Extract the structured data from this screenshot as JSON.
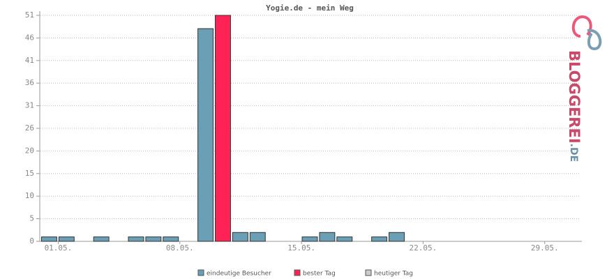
{
  "chart_data": {
    "type": "bar",
    "title": "Yogie.de - mein Weg",
    "categories": [
      "01.05.",
      null,
      null,
      null,
      null,
      null,
      null,
      "08.05.",
      null,
      null,
      null,
      null,
      null,
      null,
      "15.05.",
      null,
      null,
      null,
      null,
      null,
      null,
      "22.05.",
      null,
      null,
      null,
      null,
      null,
      null,
      "29.05.",
      null,
      null
    ],
    "series": [
      {
        "name": "eindeutige Besucher",
        "color": "#6a9fb5",
        "values": [
          1,
          1,
          0,
          1,
          0,
          1,
          1,
          1,
          0,
          48,
          null,
          2,
          2,
          0,
          0,
          1,
          2,
          1,
          0,
          1,
          2,
          0,
          0,
          0,
          0,
          0,
          0,
          0,
          0,
          0,
          0
        ]
      },
      {
        "name": "bester Tag",
        "color": "#ff2255",
        "values": [
          null,
          null,
          null,
          null,
          null,
          null,
          null,
          null,
          null,
          null,
          51,
          null,
          null,
          null,
          null,
          null,
          null,
          null,
          null,
          null,
          null,
          null,
          null,
          null,
          null,
          null,
          null,
          null,
          null,
          null,
          null
        ]
      },
      {
        "name": "heutiger Tag",
        "color": "#cccccc",
        "values": [
          null,
          null,
          null,
          null,
          null,
          null,
          null,
          null,
          null,
          null,
          null,
          null,
          null,
          null,
          null,
          null,
          null,
          null,
          null,
          null,
          null,
          null,
          null,
          null,
          null,
          null,
          null,
          null,
          null,
          null,
          null
        ]
      }
    ],
    "ylim": [
      0,
      51
    ],
    "yticks": [
      0,
      {
        "value": 5.1,
        "label": "5"
      },
      {
        "value": 10.2,
        "label": "10"
      },
      {
        "value": 15.3,
        "label": "15"
      },
      {
        "value": 20.4,
        "label": "20"
      },
      {
        "value": 25.5,
        "label": "26"
      },
      {
        "value": 30.6,
        "label": "31"
      },
      {
        "value": 35.7,
        "label": "36"
      },
      {
        "value": 40.8,
        "label": "41"
      },
      {
        "value": 45.9,
        "label": "46"
      },
      51
    ],
    "grid": true
  },
  "logo": {
    "name": "BLOGGEREI",
    "suffix": ".DE"
  }
}
